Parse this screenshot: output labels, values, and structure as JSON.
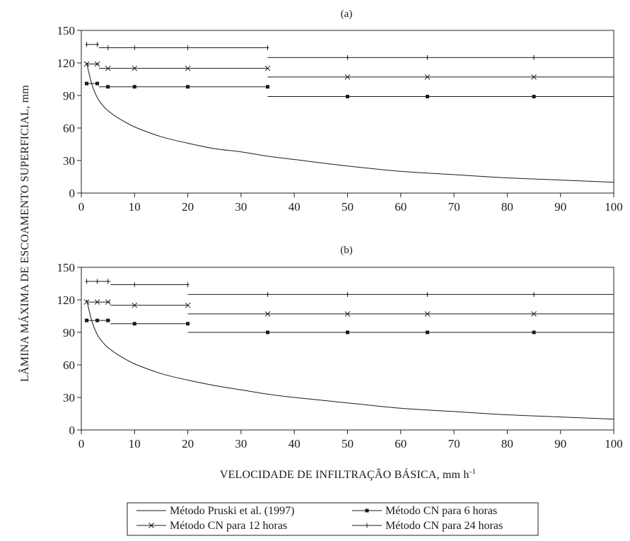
{
  "chart_data": {
    "type": "line",
    "xlabel": "VELOCIDADE DE INFILTRAÇÃO BÁSICA, mm h",
    "xlabel_superscript": "-1",
    "ylabel": "LÂMINA MÁXIMA DE ESCOAMENTO SUPERFICIAL, mm",
    "xlim": [
      0,
      100
    ],
    "ylim": [
      0,
      150
    ],
    "x_ticks": [
      "0",
      "10",
      "20",
      "30",
      "40",
      "50",
      "60",
      "70",
      "80",
      "90",
      "100"
    ],
    "y_ticks": [
      "0",
      "30",
      "60",
      "90",
      "120",
      "150"
    ],
    "grid": false,
    "legend_position": "bottom-center",
    "legend": [
      {
        "name": "Método Pruski et al. (1997)",
        "marker": "none"
      },
      {
        "name": "Método CN para 6 horas",
        "marker": "square"
      },
      {
        "name": "Método CN para 12 horas",
        "marker": "x"
      },
      {
        "name": "Método CN para 24 horas",
        "marker": "plus"
      }
    ],
    "panels": [
      {
        "label": "(a)",
        "series": [
          {
            "name": "Método Pruski et al. (1997)",
            "x": [
              1,
              2,
              3,
              4,
              5,
              7,
              10,
              15,
              20,
              25,
              30,
              35,
              40,
              50,
              60,
              70,
              80,
              90,
              100
            ],
            "y": [
              120,
              100,
              88,
              81,
              76,
              69,
              61,
              52,
              46,
              41,
              38,
              34,
              31,
              25,
              20,
              17,
              14,
              12,
              10
            ]
          },
          {
            "name": "Método CN para 6 horas",
            "segments": [
              {
                "x": [
                  1,
                  3.3
                ],
                "y": [
                  101,
                  101
                ],
                "markers": [
                  1,
                  3
                ]
              },
              {
                "x": [
                  3.3,
                  35
                ],
                "y": [
                  98,
                  98
                ],
                "markers": [
                  5,
                  10,
                  20,
                  35
                ]
              },
              {
                "x": [
                  35,
                  100
                ],
                "y": [
                  89,
                  89
                ],
                "markers": [
                  50,
                  65,
                  85
                ]
              }
            ]
          },
          {
            "name": "Método CN para 12 horas",
            "segments": [
              {
                "x": [
                  1,
                  3.3
                ],
                "y": [
                  119,
                  119
                ],
                "markers": [
                  1,
                  3
                ]
              },
              {
                "x": [
                  3.3,
                  35
                ],
                "y": [
                  115,
                  115
                ],
                "markers": [
                  5,
                  10,
                  20,
                  35
                ]
              },
              {
                "x": [
                  35,
                  100
                ],
                "y": [
                  107,
                  107
                ],
                "markers": [
                  50,
                  65,
                  85
                ]
              }
            ]
          },
          {
            "name": "Método CN para 24 horas",
            "segments": [
              {
                "x": [
                  1,
                  3.3
                ],
                "y": [
                  137,
                  137
                ],
                "markers": [
                  1,
                  3
                ]
              },
              {
                "x": [
                  3.3,
                  35
                ],
                "y": [
                  134,
                  134
                ],
                "markers": [
                  5,
                  10,
                  20,
                  35
                ]
              },
              {
                "x": [
                  35,
                  100
                ],
                "y": [
                  125,
                  125
                ],
                "markers": [
                  50,
                  65,
                  85
                ]
              }
            ]
          }
        ]
      },
      {
        "label": "(b)",
        "series": [
          {
            "name": "Método Pruski et al. (1997)",
            "x": [
              1,
              2,
              3,
              4,
              5,
              7,
              10,
              15,
              20,
              25,
              30,
              35,
              40,
              50,
              60,
              70,
              80,
              90,
              100
            ],
            "y": [
              120,
              100,
              88,
              81,
              76,
              69,
              61,
              52,
              46,
              41,
              37,
              33,
              30,
              25,
              20,
              17,
              14,
              12,
              10
            ]
          },
          {
            "name": "Método CN para 6 horas",
            "segments": [
              {
                "x": [
                  1,
                  5.5
                ],
                "y": [
                  101,
                  101
                ],
                "markers": [
                  1,
                  3,
                  5
                ]
              },
              {
                "x": [
                  5.5,
                  20
                ],
                "y": [
                  98,
                  98
                ],
                "markers": [
                  10,
                  20
                ]
              },
              {
                "x": [
                  20,
                  100
                ],
                "y": [
                  90,
                  90
                ],
                "markers": [
                  35,
                  50,
                  65,
                  85
                ]
              }
            ]
          },
          {
            "name": "Método CN para 12 horas",
            "segments": [
              {
                "x": [
                  1,
                  5.5
                ],
                "y": [
                  118,
                  118
                ],
                "markers": [
                  1,
                  3,
                  5
                ]
              },
              {
                "x": [
                  5.5,
                  20
                ],
                "y": [
                  115,
                  115
                ],
                "markers": [
                  10,
                  20
                ]
              },
              {
                "x": [
                  20,
                  100
                ],
                "y": [
                  107,
                  107
                ],
                "markers": [
                  35,
                  50,
                  65,
                  85
                ]
              }
            ]
          },
          {
            "name": "Método CN para 24 horas",
            "segments": [
              {
                "x": [
                  1,
                  5.5
                ],
                "y": [
                  137,
                  137
                ],
                "markers": [
                  1,
                  3,
                  5
                ]
              },
              {
                "x": [
                  5.5,
                  20
                ],
                "y": [
                  134,
                  134
                ],
                "markers": [
                  10,
                  20
                ]
              },
              {
                "x": [
                  20,
                  100
                ],
                "y": [
                  125,
                  125
                ],
                "markers": [
                  35,
                  50,
                  65,
                  85
                ]
              }
            ]
          }
        ]
      }
    ]
  }
}
